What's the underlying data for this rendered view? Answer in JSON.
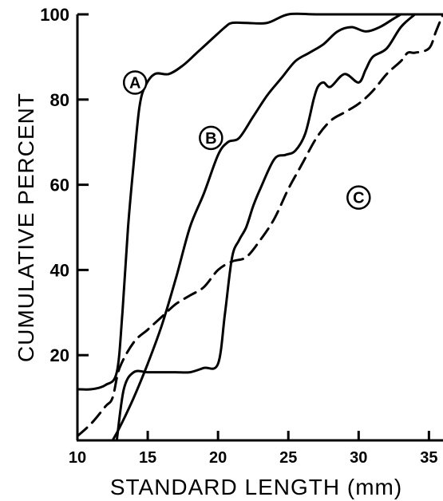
{
  "chart_data": {
    "type": "line",
    "title": "",
    "xlabel": "STANDARD LENGTH (mm)",
    "ylabel": "CUMULATIVE PERCENT",
    "xlim": [
      10,
      36
    ],
    "ylim": [
      0,
      100
    ],
    "xticks": [
      10,
      15,
      20,
      25,
      30,
      35
    ],
    "xtick_labels": [
      "10",
      "15",
      "20",
      "25",
      "30",
      "35"
    ],
    "yticks": [
      20,
      40,
      60,
      80,
      100
    ],
    "ytick_labels": [
      "20",
      "40",
      "60",
      "80",
      "100"
    ],
    "grid": false,
    "legend": "none",
    "series": [
      {
        "name": "A",
        "line_style": "solid",
        "x": [
          10,
          11,
          12,
          12.8,
          13.2,
          13.6,
          14.0,
          14.4,
          14.8,
          15.5,
          16.5,
          17.5,
          18.5,
          19.5,
          20.5,
          21.0,
          22.0,
          23.5,
          25.0,
          27.0,
          30.0,
          35.0,
          36.0
        ],
        "y": [
          12,
          12,
          13,
          16,
          30,
          50,
          65,
          78,
          83,
          86,
          86,
          88,
          91,
          94,
          97,
          98,
          98,
          98,
          100,
          100,
          100,
          100,
          100
        ]
      },
      {
        "name": "B",
        "line_style": "solid",
        "x": [
          12.5,
          13.0,
          14.0,
          15.0,
          16.0,
          17.0,
          18.0,
          19.0,
          20.0,
          20.7,
          21.5,
          22.5,
          23.5,
          24.5,
          25.5,
          26.5,
          27.5,
          28.5,
          29.5,
          30.5,
          31.5,
          32.5,
          33.0
        ],
        "y": [
          0,
          3,
          10,
          18,
          27,
          38,
          50,
          58,
          67,
          70,
          71,
          76,
          81,
          85,
          89,
          91,
          93,
          96,
          97,
          96,
          97,
          99,
          100
        ]
      },
      {
        "name": "C",
        "line_style": "solid",
        "x": [
          12.8,
          13.3,
          14.0,
          15.0,
          16.0,
          17.0,
          18.0,
          19.0,
          20.0,
          20.5,
          21.0,
          21.5,
          22.0,
          22.5,
          23.0,
          24.0,
          24.8,
          25.5,
          26.2,
          26.8,
          27.1,
          27.5,
          28.0,
          29.0,
          30.0,
          30.5,
          31.0,
          32.0,
          33.0,
          34.0
        ],
        "y": [
          0,
          12,
          16,
          16,
          16,
          16,
          16,
          17,
          18,
          30,
          43,
          47,
          50,
          55,
          59,
          66,
          67,
          68,
          72,
          80,
          83,
          84,
          83,
          86,
          84,
          87,
          90,
          92,
          97,
          100
        ]
      },
      {
        "name": "",
        "line_style": "dashed",
        "x": [
          10.0,
          11.0,
          12.0,
          12.5,
          13.0,
          14.0,
          15.0,
          16.0,
          17.0,
          18.0,
          19.0,
          20.0,
          21.0,
          22.0,
          23.0,
          24.0,
          25.0,
          26.0,
          27.0,
          28.0,
          29.0,
          30.0,
          31.0,
          32.0,
          33.0,
          33.5,
          34.0,
          35.0,
          35.5,
          36.0
        ],
        "y": [
          1,
          4,
          8,
          10,
          17,
          23,
          26,
          29,
          32,
          34,
          36,
          40,
          42,
          43,
          47,
          52,
          59,
          65,
          71,
          75,
          77,
          79,
          82,
          86,
          89,
          91,
          91,
          92,
          96,
          100
        ]
      }
    ],
    "annotations": [
      {
        "text": "A",
        "x": 14.1,
        "y": 84
      },
      {
        "text": "B",
        "x": 19.5,
        "y": 71
      },
      {
        "text": "C",
        "x": 30.0,
        "y": 57
      }
    ]
  }
}
